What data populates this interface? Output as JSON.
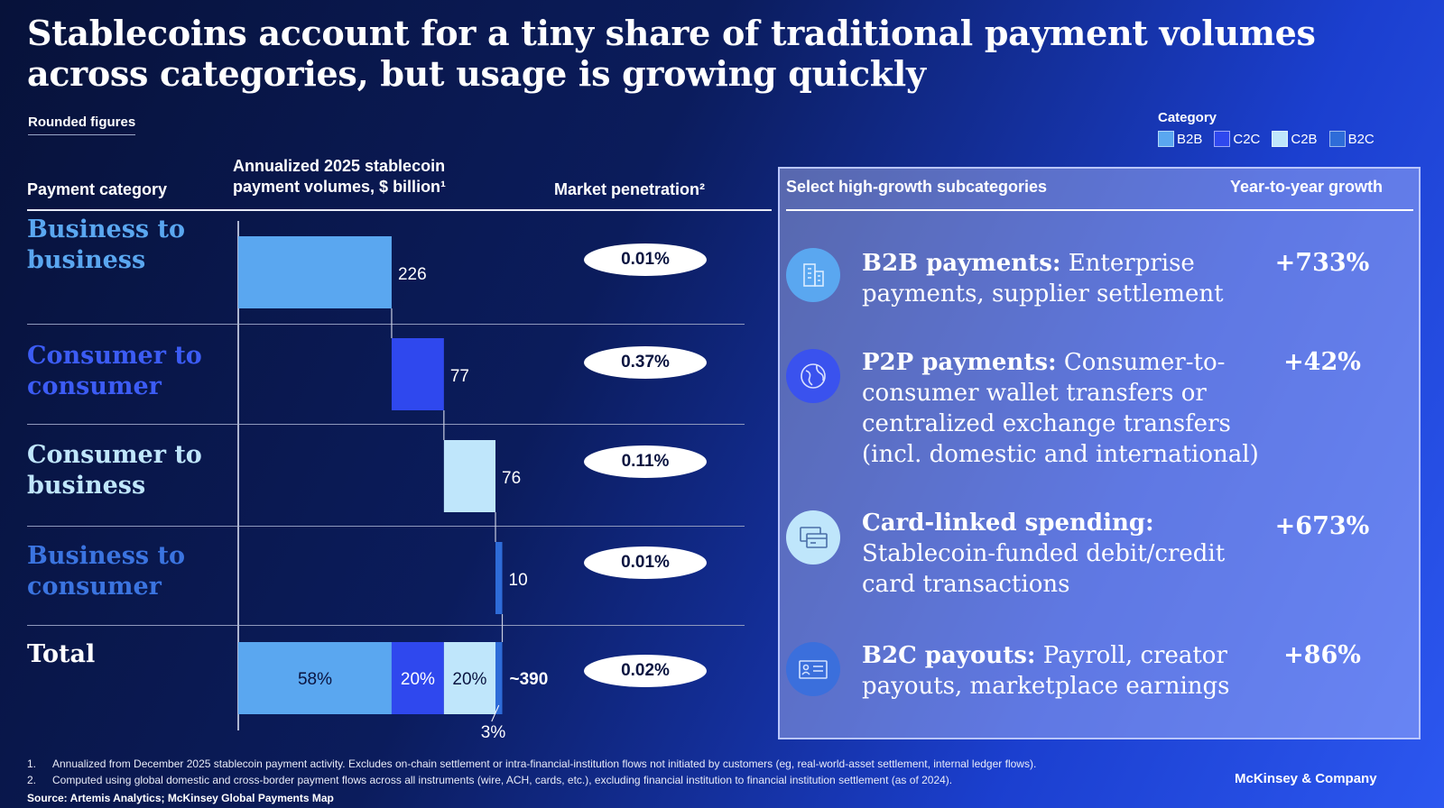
{
  "title": "Stablecoins account for a tiny share of traditional payment volumes across categories, but usage is growing quickly",
  "subtitle": "Rounded figures",
  "legend": {
    "title": "Category",
    "items": [
      {
        "label": "B2B",
        "color": "#5aa7f0"
      },
      {
        "label": "C2C",
        "color": "#2f48ee"
      },
      {
        "label": "C2B",
        "color": "#bfe6fb"
      },
      {
        "label": "B2C",
        "color": "#2e6cd8"
      }
    ]
  },
  "headers": {
    "category": "Payment category",
    "volumes_line1": "Annualized 2025 stablecoin",
    "volumes_line2": "payment volumes, $ billion¹",
    "penetration": "Market penetration²"
  },
  "chart_data": {
    "type": "bar",
    "subtype": "waterfall",
    "categories": [
      "Business to business",
      "Consumer to consumer",
      "Consumer to business",
      "Business to consumer",
      "Total"
    ],
    "category_label_colors": [
      "#5aa7f0",
      "#3c5cf5",
      "#bfe6fb",
      "#3b74e0",
      "#ffffff"
    ],
    "values": [
      226,
      77,
      76,
      10,
      390
    ],
    "value_labels": [
      "226",
      "77",
      "76",
      "10",
      "~390"
    ],
    "market_penetration": [
      "0.01%",
      "0.37%",
      "0.11%",
      "0.01%",
      "0.02%"
    ],
    "total_breakdown": [
      {
        "category": "B2B",
        "share_label": "58%",
        "value": 226
      },
      {
        "category": "C2C",
        "share_label": "20%",
        "value": 77
      },
      {
        "category": "C2B",
        "share_label": "20%",
        "value": 76
      },
      {
        "category": "B2C",
        "share_label": "3%",
        "value": 10
      }
    ],
    "colors": [
      "#5aa7f0",
      "#2f48ee",
      "#bfe6fb",
      "#2e6cd8"
    ]
  },
  "panel": {
    "header_left": "Select high-growth subcategories",
    "header_right": "Year-to-year growth",
    "items": [
      {
        "title": "B2B payments:",
        "text": "Enterprise payments, supplier settlement",
        "growth": "+733%",
        "icon": "building-icon",
        "icon_color": "#5aa7f0"
      },
      {
        "title": "P2P payments:",
        "text": "Consumer-to-consumer wallet transfers or centralized exchange transfers (incl. domestic and international)",
        "growth": "+42%",
        "icon": "globe-icon",
        "icon_color": "#3a52ee"
      },
      {
        "title": "Card-linked spending:",
        "text": "Stablecoin-funded debit/credit card transactions",
        "growth": "+673%",
        "icon": "cards-icon",
        "icon_color": "#bfe6fb"
      },
      {
        "title": "B2C payouts:",
        "text": "Payroll, creator payouts, marketplace earnings",
        "growth": "+86%",
        "icon": "id-card-icon",
        "icon_color": "#3b6fdc"
      }
    ]
  },
  "footnotes": [
    {
      "num": "1.",
      "text": "Annualized from December 2025 stablecoin payment activity. Excludes on-chain settlement or intra-financial-institution flows not initiated by customers (eg, real-world-asset settlement, internal ledger flows)."
    },
    {
      "num": "2.",
      "text": "Computed using global domestic and cross-border payment flows across all instruments (wire, ACH, cards, etc.), excluding financial institution to financial institution settlement (as of 2024)."
    }
  ],
  "source": "Source: Artemis Analytics; McKinsey Global Payments Map",
  "brand": "McKinsey & Company"
}
